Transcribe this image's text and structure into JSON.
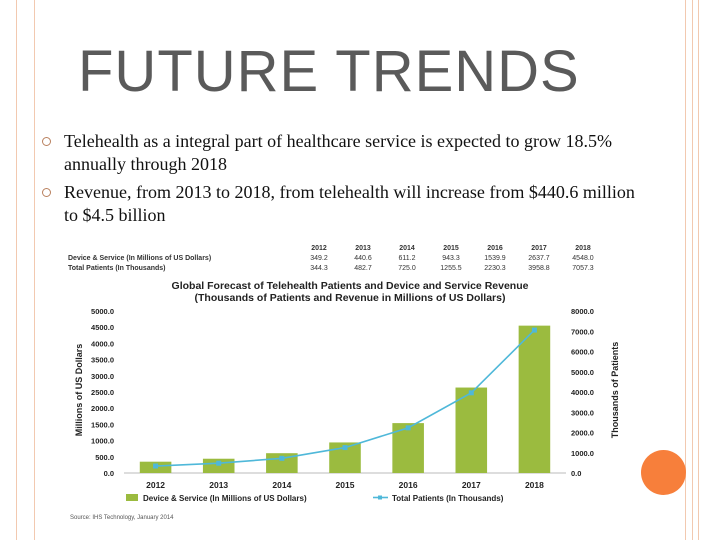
{
  "slide": {
    "title": "FUTURE TRENDS",
    "bullets": [
      "Telehealth as a integral part of healthcare service is expected to grow 18.5% annually through 2018",
      "Revenue, from 2013 to 2018, from telehealth will increase from $440.6 million to $4.5 billion"
    ]
  },
  "table": {
    "years": [
      "2012",
      "2013",
      "2014",
      "2015",
      "2016",
      "2017",
      "2018"
    ],
    "rows": [
      {
        "label": "Device & Service (In Millions of US Dollars)",
        "values": [
          "349.2",
          "440.6",
          "611.2",
          "943.3",
          "1539.9",
          "2637.7",
          "4548.0"
        ]
      },
      {
        "label": "Total Patients (In Thousands)",
        "values": [
          "344.3",
          "482.7",
          "725.0",
          "1255.5",
          "2230.3",
          "3958.8",
          "7057.3"
        ]
      }
    ]
  },
  "chart_data": {
    "type": "bar",
    "title": "Global Forecast of Telehealth Patients and Device and Service Revenue",
    "subtitle": "(Thousands of Patients and Revenue in Millions of US Dollars)",
    "categories": [
      "2012",
      "2013",
      "2014",
      "2015",
      "2016",
      "2017",
      "2018"
    ],
    "series": [
      {
        "name": "Device & Service (In Millions of US Dollars)",
        "type": "bar",
        "axis": "left",
        "color": "#9bbb3f",
        "values": [
          349.2,
          440.6,
          611.2,
          943.3,
          1539.9,
          2637.7,
          4548.0
        ]
      },
      {
        "name": "Total Patients (In Thousands)",
        "type": "line",
        "axis": "right",
        "color": "#4fb8d9",
        "values": [
          344.3,
          482.7,
          725.0,
          1255.5,
          2230.3,
          3958.8,
          7057.3
        ]
      }
    ],
    "ylabel": "Millions of US Dollars",
    "y2label": "Thousands of Patients",
    "ylim": [
      0,
      5000
    ],
    "y2lim": [
      0,
      8000
    ],
    "yticks": [
      "0.0",
      "500.0",
      "1000.0",
      "1500.0",
      "2000.0",
      "2500.0",
      "3000.0",
      "3500.0",
      "4000.0",
      "4500.0",
      "5000.0"
    ],
    "y2ticks": [
      "0.0",
      "1000.0",
      "2000.0",
      "3000.0",
      "4000.0",
      "5000.0",
      "6000.0",
      "7000.0",
      "8000.0"
    ],
    "source": "Source: IHS Technology, January 2014",
    "legend_position": "bottom"
  },
  "colors": {
    "accent": "#f77f3b",
    "border": "#f2c9b0",
    "bar": "#9bbb3f",
    "line": "#4fb8d9"
  }
}
